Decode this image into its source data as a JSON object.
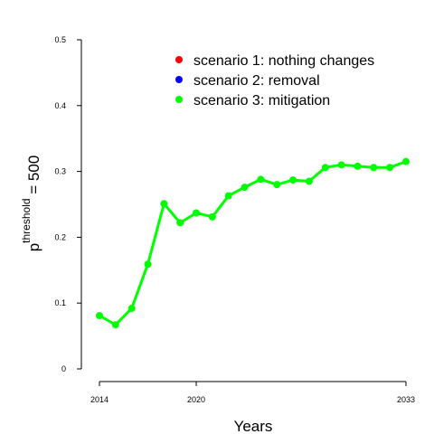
{
  "chart_data": {
    "type": "line",
    "xlabel": "Years",
    "ylabel": {
      "base": "p",
      "superscript": "threshold",
      "suffix": " = 500"
    },
    "x_ticks": [
      "2014",
      "2020",
      "2033"
    ],
    "y_ticks": [
      "0",
      "0.1",
      "0.2",
      "0.3",
      "0.4",
      "0.5"
    ],
    "xlim": [
      2014,
      2033
    ],
    "ylim": [
      0,
      0.5
    ],
    "grid": false,
    "legend_position": "top-right",
    "legend": [
      {
        "label": "scenario 1: nothing changes",
        "color": "#ff0000"
      },
      {
        "label": "scenario 2: removal",
        "color": "#0000ff"
      },
      {
        "label": "scenario 3: mitigation",
        "color": "#00ff00"
      }
    ],
    "series": [
      {
        "name": "scenario 3: mitigation",
        "color": "#00ff00",
        "x": [
          2014,
          2015,
          2016,
          2017,
          2018,
          2019,
          2020,
          2021,
          2022,
          2023,
          2024,
          2025,
          2026,
          2027,
          2028,
          2029,
          2030,
          2031,
          2032,
          2033
        ],
        "values": [
          0.081,
          0.067,
          0.092,
          0.159,
          0.251,
          0.222,
          0.237,
          0.231,
          0.263,
          0.276,
          0.288,
          0.28,
          0.287,
          0.285,
          0.306,
          0.31,
          0.308,
          0.306,
          0.306,
          0.315
        ]
      }
    ]
  }
}
